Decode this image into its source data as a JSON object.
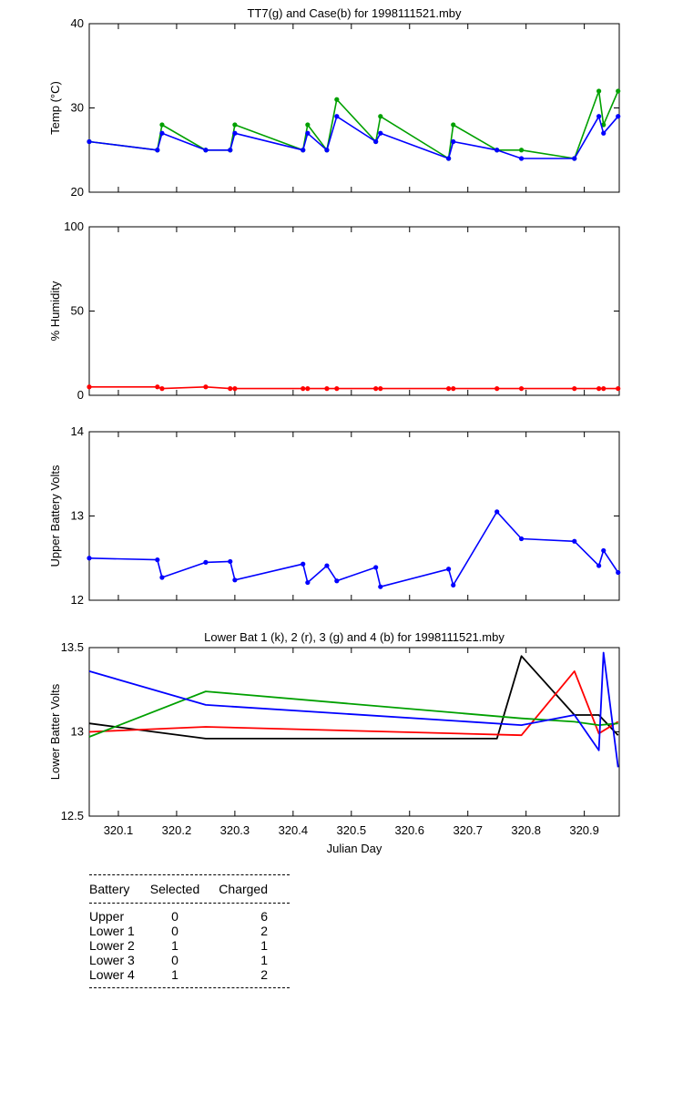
{
  "chart_data": [
    {
      "type": "line",
      "title": "TT7(g) and Case(b) for 1998111521.mby",
      "ylabel": "Temp  (°C)",
      "xlim": [
        320.05,
        320.96
      ],
      "ylim": [
        20,
        40
      ],
      "yticks": [
        20,
        30,
        40
      ],
      "markers": true,
      "series": [
        {
          "color": "#00a000",
          "x": [
            320.05,
            320.167,
            320.175,
            320.25,
            320.292,
            320.3,
            320.417,
            320.425,
            320.458,
            320.475,
            320.542,
            320.55,
            320.667,
            320.675,
            320.75,
            320.792,
            320.883,
            320.925,
            320.933,
            320.958
          ],
          "y": [
            26,
            25,
            28,
            25,
            25,
            28,
            25,
            28,
            25,
            31,
            26,
            29,
            24,
            28,
            25,
            25,
            24,
            32,
            28,
            32
          ]
        },
        {
          "color": "#0000ff",
          "x": [
            320.05,
            320.167,
            320.175,
            320.25,
            320.292,
            320.3,
            320.417,
            320.425,
            320.458,
            320.475,
            320.542,
            320.55,
            320.667,
            320.675,
            320.75,
            320.792,
            320.883,
            320.925,
            320.933,
            320.958
          ],
          "y": [
            26,
            25,
            27,
            25,
            25,
            27,
            25,
            27,
            25,
            29,
            26,
            27,
            24,
            26,
            25,
            24,
            24,
            29,
            27,
            29
          ]
        }
      ]
    },
    {
      "type": "line",
      "ylabel": "% Humidity",
      "xlim": [
        320.05,
        320.96
      ],
      "ylim": [
        0,
        100
      ],
      "yticks": [
        0,
        50,
        100
      ],
      "markers": true,
      "series": [
        {
          "color": "#ff0000",
          "x": [
            320.05,
            320.167,
            320.175,
            320.25,
            320.292,
            320.3,
            320.417,
            320.425,
            320.458,
            320.475,
            320.542,
            320.55,
            320.667,
            320.675,
            320.75,
            320.792,
            320.883,
            320.925,
            320.933,
            320.958
          ],
          "y": [
            5,
            5,
            4,
            5,
            4,
            4,
            4,
            4,
            4,
            4,
            4,
            4,
            4,
            4,
            4,
            4,
            4,
            4,
            4,
            4
          ]
        }
      ]
    },
    {
      "type": "line",
      "ylabel": "Upper Battery Volts",
      "xlim": [
        320.05,
        320.96
      ],
      "ylim": [
        12,
        14
      ],
      "yticks": [
        12,
        13,
        14
      ],
      "markers": true,
      "series": [
        {
          "color": "#0000ff",
          "x": [
            320.05,
            320.167,
            320.175,
            320.25,
            320.292,
            320.3,
            320.417,
            320.425,
            320.458,
            320.475,
            320.542,
            320.55,
            320.667,
            320.675,
            320.75,
            320.792,
            320.883,
            320.925,
            320.933,
            320.958
          ],
          "y": [
            12.5,
            12.48,
            12.27,
            12.45,
            12.46,
            12.24,
            12.43,
            12.21,
            12.41,
            12.23,
            12.39,
            12.16,
            12.37,
            12.18,
            13.05,
            12.73,
            12.7,
            12.41,
            12.59,
            12.33
          ]
        }
      ]
    },
    {
      "type": "line",
      "title": "Lower Bat 1 (k), 2 (r), 3 (g) and 4 (b) for 1998111521.mby",
      "xlabel": "Julian Day",
      "ylabel": "Lower Batter Volts",
      "xlim": [
        320.05,
        320.96
      ],
      "ylim": [
        12.5,
        13.5
      ],
      "yticks": [
        "12.5",
        "13",
        "13.5"
      ],
      "xticks": [
        "320.1",
        "320.2",
        "320.3",
        "320.4",
        "320.5",
        "320.6",
        "320.7",
        "320.8",
        "320.9"
      ],
      "markers": false,
      "series": [
        {
          "color": "#000000",
          "x": [
            320.05,
            320.25,
            320.75,
            320.792,
            320.883,
            320.925,
            320.958
          ],
          "y": [
            13.05,
            12.96,
            12.96,
            13.45,
            13.1,
            13.1,
            12.98
          ]
        },
        {
          "color": "#ff0000",
          "x": [
            320.05,
            320.25,
            320.792,
            320.883,
            320.925,
            320.958
          ],
          "y": [
            13.0,
            13.03,
            12.98,
            13.36,
            12.99,
            13.06
          ]
        },
        {
          "color": "#00a000",
          "x": [
            320.05,
            320.25,
            320.792,
            320.883,
            320.925,
            320.958
          ],
          "y": [
            12.97,
            13.24,
            13.08,
            13.06,
            13.04,
            13.05
          ]
        },
        {
          "color": "#0000ff",
          "x": [
            320.05,
            320.25,
            320.792,
            320.883,
            320.925,
            320.933,
            320.958
          ],
          "y": [
            13.36,
            13.16,
            13.04,
            13.1,
            12.89,
            13.47,
            12.79
          ]
        }
      ]
    }
  ],
  "battery_table": {
    "headers": [
      "Battery",
      "Selected",
      "Charged"
    ],
    "rows": [
      [
        "Upper",
        "0",
        "6"
      ],
      [
        "Lower 1",
        "0",
        "2"
      ],
      [
        "Lower 2",
        "1",
        "1"
      ],
      [
        "Lower 3",
        "0",
        "1"
      ],
      [
        "Lower 4",
        "1",
        "2"
      ]
    ]
  }
}
